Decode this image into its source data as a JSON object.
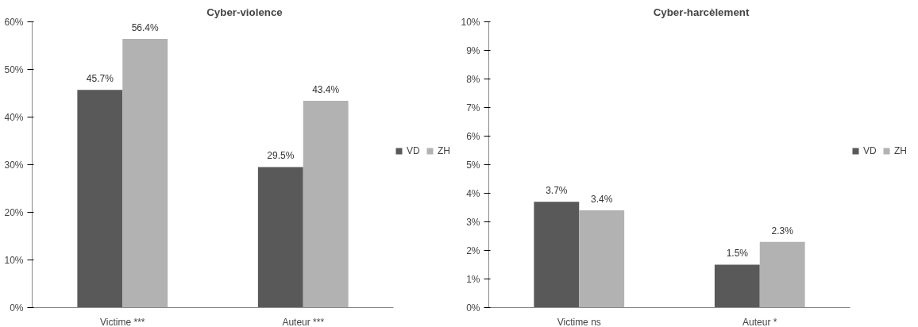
{
  "chart_data": [
    {
      "type": "bar",
      "title": "Cyber-violence",
      "categories": [
        "Victime ***",
        "Auteur ***"
      ],
      "series": [
        {
          "name": "VD",
          "color": "#595959",
          "values": [
            45.7,
            29.5
          ],
          "value_labels": [
            "45.7%",
            "29.5%"
          ]
        },
        {
          "name": "ZH",
          "color": "#b2b2b2",
          "values": [
            56.4,
            43.4
          ],
          "value_labels": [
            "56.4%",
            "43.4%"
          ]
        }
      ],
      "ylim": [
        0,
        60
      ],
      "yticks": [
        {
          "value": 0,
          "label": "0%"
        },
        {
          "value": 10,
          "label": "10%"
        },
        {
          "value": 20,
          "label": "20%"
        },
        {
          "value": 30,
          "label": "30%"
        },
        {
          "value": 40,
          "label": "40%"
        },
        {
          "value": 50,
          "label": "50%"
        },
        {
          "value": 60,
          "label": "60%"
        }
      ],
      "grid": false,
      "legend": "right"
    },
    {
      "type": "bar",
      "title": "Cyber-harcèlement",
      "categories": [
        "Victime ns",
        "Auteur *"
      ],
      "series": [
        {
          "name": "VD",
          "color": "#595959",
          "values": [
            3.7,
            1.5
          ],
          "value_labels": [
            "3.7%",
            "1.5%"
          ]
        },
        {
          "name": "ZH",
          "color": "#b2b2b2",
          "values": [
            3.4,
            2.3
          ],
          "value_labels": [
            "3.4%",
            "2.3%"
          ]
        }
      ],
      "ylim": [
        0,
        10
      ],
      "yticks": [
        {
          "value": 0,
          "label": "0%"
        },
        {
          "value": 1,
          "label": "1%"
        },
        {
          "value": 2,
          "label": "2%"
        },
        {
          "value": 3,
          "label": "3%"
        },
        {
          "value": 4,
          "label": "4%"
        },
        {
          "value": 5,
          "label": "5%"
        },
        {
          "value": 6,
          "label": "6%"
        },
        {
          "value": 7,
          "label": "7%"
        },
        {
          "value": 8,
          "label": "8%"
        },
        {
          "value": 9,
          "label": "9%"
        },
        {
          "value": 10,
          "label": "10%"
        }
      ],
      "grid": false,
      "legend": "right"
    }
  ]
}
